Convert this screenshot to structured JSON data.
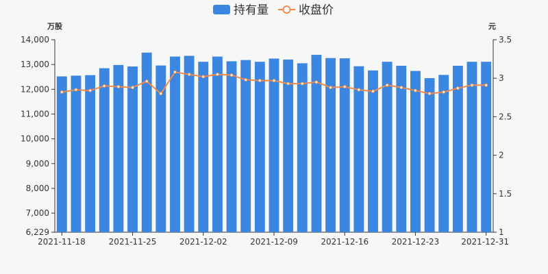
{
  "chart_data": {
    "type": "bar",
    "legend": {
      "placement": "top-center",
      "items": [
        {
          "name": "持有量",
          "kind": "bar",
          "color": "#3a86e0"
        },
        {
          "name": "收盘价",
          "kind": "line",
          "color": "#f08a4b"
        }
      ]
    },
    "axes": {
      "y_left_unit": "万股",
      "y_right_unit": "元",
      "y_left_ticks": [
        "6,229",
        "7,000",
        "8,000",
        "9,000",
        "10,000",
        "11,000",
        "12,000",
        "13,000",
        "14,000"
      ],
      "y_left_tick_values": [
        6229,
        7000,
        8000,
        9000,
        10000,
        11000,
        12000,
        13000,
        14000
      ],
      "y_right_ticks": [
        "1",
        "1.5",
        "2",
        "2.5",
        "3",
        "3.5"
      ],
      "y_right_tick_values": [
        1,
        1.5,
        2,
        2.5,
        3,
        3.5
      ],
      "ylim_left": [
        6229,
        14000
      ],
      "ylim_right": [
        1,
        3.5
      ],
      "x_tick_labels": [
        "2021-11-18",
        "2021-11-25",
        "2021-12-02",
        "2021-12-09",
        "2021-12-16",
        "2021-12-23",
        "2021-12-31"
      ],
      "x_tick_indices": [
        0,
        5,
        10,
        15,
        20,
        25,
        30
      ],
      "grid": false
    },
    "categories": [
      "2021-11-18",
      "2021-11-19",
      "2021-11-22",
      "2021-11-23",
      "2021-11-24",
      "2021-11-25",
      "2021-11-26",
      "2021-11-29",
      "2021-11-30",
      "2021-12-01",
      "2021-12-02",
      "2021-12-03",
      "2021-12-06",
      "2021-12-07",
      "2021-12-08",
      "2021-12-09",
      "2021-12-10",
      "2021-12-13",
      "2021-12-14",
      "2021-12-15",
      "2021-12-16",
      "2021-12-17",
      "2021-12-20",
      "2021-12-21",
      "2021-12-22",
      "2021-12-23",
      "2021-12-24",
      "2021-12-27",
      "2021-12-28",
      "2021-12-29",
      "2021-12-31"
    ],
    "series": [
      {
        "name": "持有量",
        "type": "bar",
        "axis": "left",
        "color": "#3a86e0",
        "values": [
          12520,
          12550,
          12570,
          12850,
          12980,
          12920,
          13480,
          12960,
          13320,
          13350,
          13110,
          13320,
          13130,
          13180,
          13110,
          13240,
          13200,
          13050,
          13390,
          13260,
          13250,
          12930,
          12760,
          13110,
          12950,
          12740,
          12450,
          12580,
          12950,
          13110,
          13110
        ]
      },
      {
        "name": "收盘价",
        "type": "line",
        "axis": "right",
        "color": "#f08a4b",
        "values": [
          2.82,
          2.85,
          2.84,
          2.9,
          2.89,
          2.88,
          2.96,
          2.8,
          3.08,
          3.05,
          3.02,
          3.05,
          3.04,
          2.98,
          2.97,
          2.97,
          2.93,
          2.93,
          2.95,
          2.88,
          2.89,
          2.85,
          2.83,
          2.91,
          2.88,
          2.84,
          2.8,
          2.82,
          2.87,
          2.91,
          2.91
        ]
      }
    ]
  }
}
